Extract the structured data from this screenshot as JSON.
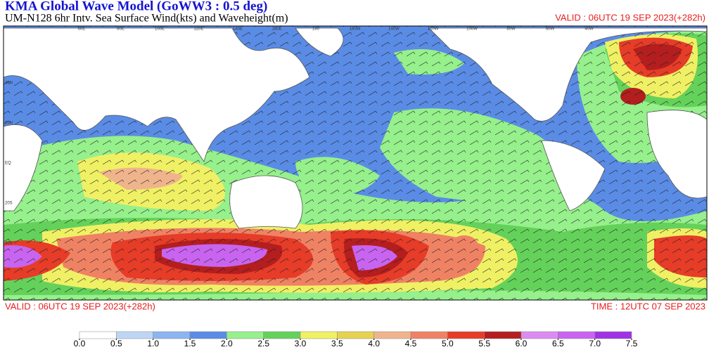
{
  "header": {
    "title": "KMA  Global Wave Model (GoWW3 : 0.5 deg)",
    "subtitle": "UM-N128  6hr Intv. Sea Surface Wind(kts) and Waveheight(m)",
    "valid_top": "VALID : 06UTC 19 SEP 2023(+282h)",
    "valid_bottom": "VALID : 06UTC 19 SEP 2023(+282h)",
    "time": "TIME : 12UTC 07 SEP 2023"
  },
  "map": {
    "lat_labels": [
      "40N",
      "20N",
      "EQ",
      "20S",
      "40S"
    ],
    "lon_labels": [
      "60E",
      "80E",
      "100E",
      "120E",
      "140E",
      "160E",
      "180",
      "160W",
      "140W",
      "120W",
      "100W",
      "80W",
      "60W",
      "40W"
    ]
  },
  "colorbar": {
    "ticks": [
      {
        "value": 0,
        "label": "0.0"
      },
      0.5,
      {
        "value": 1,
        "label": "1.0"
      },
      1.5,
      {
        "value": 2,
        "label": "2.0"
      },
      2.5,
      {
        "value": 3,
        "label": "3.0"
      },
      3.5,
      {
        "value": 4,
        "label": "4.0"
      },
      4.5,
      {
        "value": 5,
        "label": "5.0"
      },
      5.5,
      {
        "value": 6,
        "label": "6.0"
      },
      6.5,
      {
        "value": 7,
        "label": "7.0"
      },
      7.5
    ],
    "colors": [
      "#ffffff",
      "#bed6f6",
      "#8cb4f0",
      "#5a8ce6",
      "#96f08c",
      "#64d25a",
      "#f0f064",
      "#e6d250",
      "#f0b48c",
      "#f08264",
      "#e63c28",
      "#b41e1e",
      "#dc8cf0",
      "#c864f0",
      "#a032e6"
    ]
  }
}
